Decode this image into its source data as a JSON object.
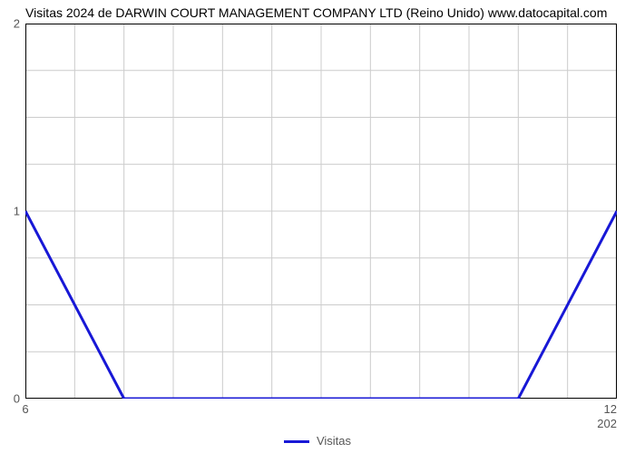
{
  "title": "Visitas 2024 de DARWIN COURT MANAGEMENT COMPANY LTD (Reino Unido) www.datocapital.com",
  "chart": {
    "type": "line",
    "x_values": [
      6,
      7,
      8,
      9,
      10,
      11,
      12
    ],
    "y_values": [
      1,
      0,
      0,
      0,
      0,
      0,
      1
    ],
    "line_color": "#1818d6",
    "line_width": 3,
    "background_color": "#ffffff",
    "grid_color": "#cccccc",
    "grid_width": 1,
    "border_color": "#000000",
    "border_width": 1,
    "xlim": [
      6,
      12
    ],
    "ylim": [
      0,
      2
    ],
    "y_ticks": [
      0,
      1,
      2
    ],
    "x_major_ticks": [
      6,
      12
    ],
    "x_minor_ticks": [
      7,
      8,
      9,
      10,
      11
    ],
    "x_secondary_label": "202",
    "num_vertical_gridlines": 13,
    "num_horizontal_gridlines": 9,
    "tick_label_color": "#555555",
    "tick_label_fontsize": 13,
    "title_fontsize": 14,
    "title_color": "#000000"
  },
  "legend": {
    "label": "Visitas",
    "swatch_color": "#1818d6",
    "swatch_width": 3,
    "font_color": "#555555",
    "fontsize": 13
  }
}
